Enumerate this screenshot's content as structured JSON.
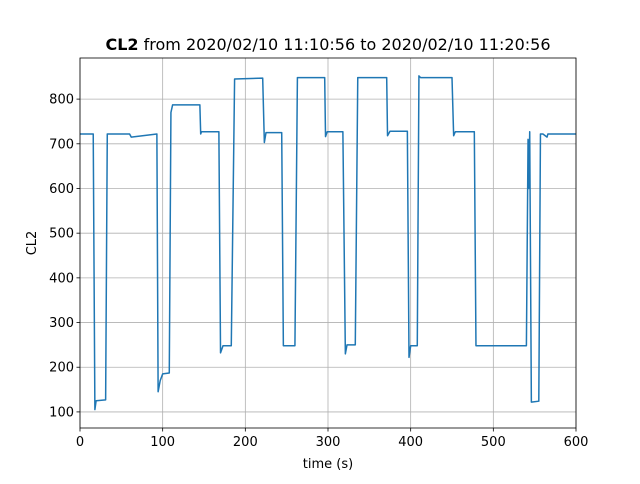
{
  "chart_data": {
    "type": "line",
    "title_bold": "CL2",
    "title": "from 2020/02/10 11:10:56 to 2020/02/10 11:20:56",
    "xlabel": "time (s)",
    "ylabel": "CL2",
    "xlim": [
      0,
      600
    ],
    "xticks": [
      0,
      100,
      200,
      300,
      400,
      500,
      600
    ],
    "ylim": [
      64,
      892
    ],
    "yticks": [
      100,
      200,
      300,
      400,
      500,
      600,
      700,
      800
    ],
    "grid": true,
    "series": [
      {
        "name": "CL2",
        "color": "#1f77b4",
        "x": [
          0,
          16,
          18,
          19.5,
          31,
          33,
          60,
          62,
          93,
          94.5,
          97,
          100,
          108,
          110,
          112,
          145,
          146,
          147,
          148,
          168,
          170,
          173,
          183,
          187,
          221,
          223,
          225,
          244,
          246,
          260,
          263,
          296,
          297,
          299,
          318,
          321,
          323,
          333,
          336,
          371,
          372,
          375,
          396,
          398,
          400,
          408,
          410,
          412,
          450,
          452,
          454,
          477,
          479,
          540,
          542,
          543,
          544,
          546,
          555,
          557,
          560,
          565,
          566,
          600
        ],
        "values": [
          722,
          722,
          105,
          125,
          127,
          722,
          722,
          715,
          722,
          145,
          170,
          185,
          187,
          770,
          787,
          787,
          722,
          727,
          727,
          727,
          232,
          248,
          248,
          845,
          847,
          703,
          725,
          725,
          248,
          248,
          848,
          848,
          716,
          727,
          727,
          230,
          250,
          250,
          848,
          848,
          718,
          728,
          728,
          222,
          248,
          248,
          852,
          848,
          848,
          718,
          727,
          727,
          248,
          248,
          710,
          600,
          727,
          122,
          124,
          722,
          722,
          715,
          722,
          722
        ]
      }
    ]
  }
}
